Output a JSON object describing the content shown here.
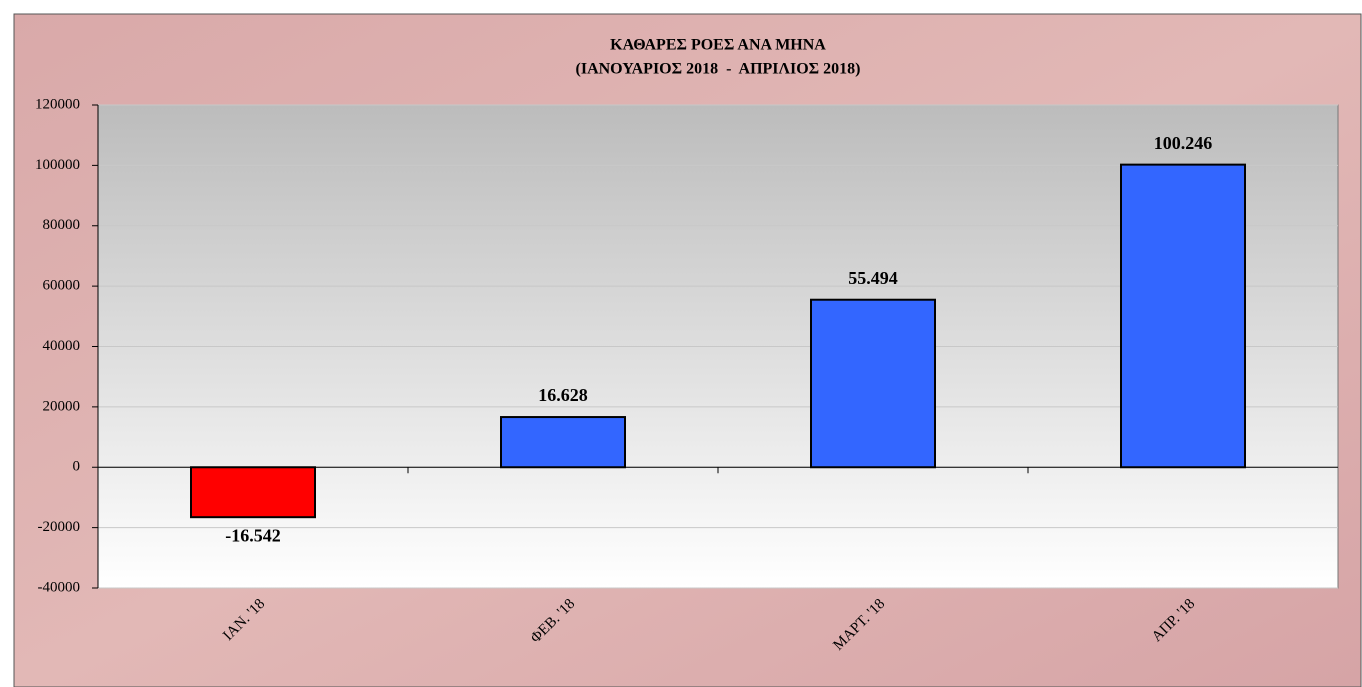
{
  "chart_data": {
    "type": "bar",
    "title": "ΚΑΘΑΡΕΣ ΡΟΕΣ ΑΝΑ ΜΗΝΑ",
    "subtitle": "(ΙΑΝΟΥΑΡΙΟΣ 2018  -  ΑΠΡΙΛΙΟΣ 2018)",
    "categories": [
      "ΙΑΝ. '18",
      "ΦΕΒ. '18",
      "ΜΑΡΤ. '18",
      "ΑΠΡ. '18"
    ],
    "values": [
      -16542,
      16628,
      55494,
      100246
    ],
    "value_labels": [
      "-16.542",
      "16.628",
      "55.494",
      "100.246"
    ],
    "colors": [
      "#ff0000",
      "#3366ff",
      "#3366ff",
      "#3366ff"
    ],
    "ylim": [
      -40000,
      120000
    ],
    "yticks": [
      -40000,
      -20000,
      0,
      20000,
      40000,
      60000,
      80000,
      100000,
      120000
    ],
    "grid": true
  }
}
